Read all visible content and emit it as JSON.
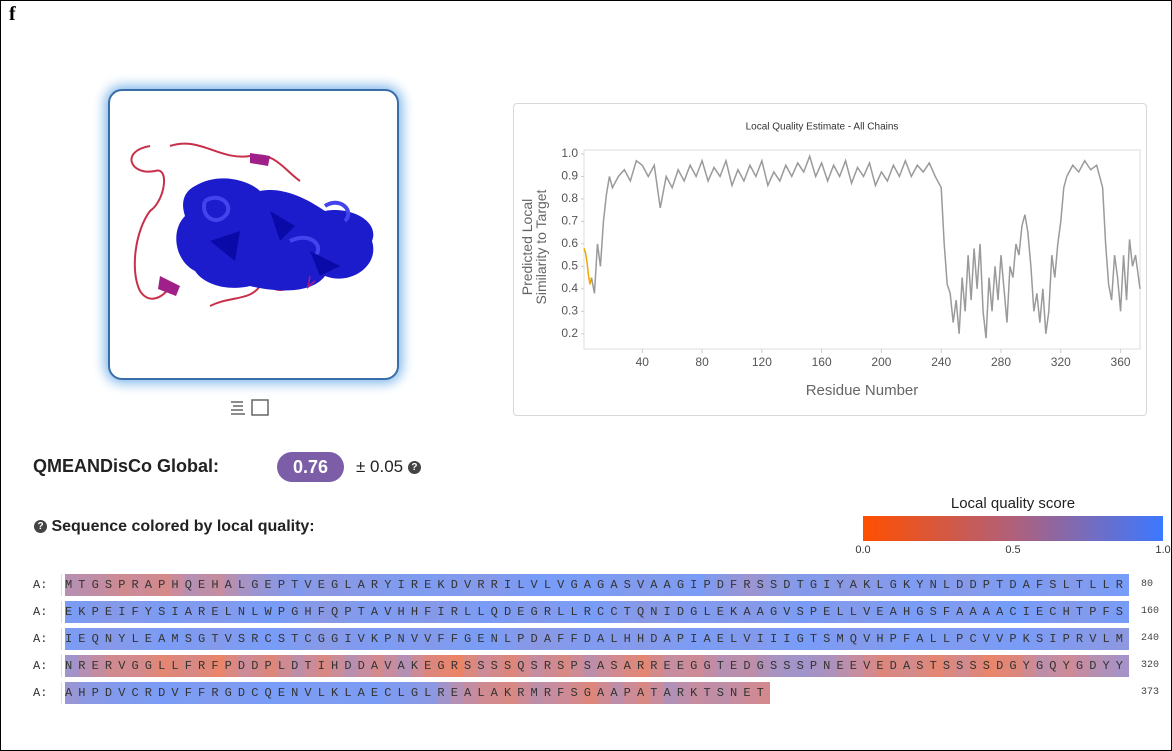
{
  "panel_label": "f",
  "chart_data": {
    "type": "line",
    "title": "Local Quality Estimate - All Chains",
    "xlabel": "Residue Number",
    "ylabel": "Predicted Local Similarity to Target",
    "xlim": [
      1,
      373
    ],
    "ylim": [
      0.15,
      1.0
    ],
    "xticks": [
      40,
      80,
      120,
      160,
      200,
      240,
      280,
      320,
      360
    ],
    "yticks": [
      0.2,
      0.3,
      0.4,
      0.5,
      0.6,
      0.7,
      0.8,
      0.9,
      {
        "value": 1,
        "label": "1.0"
      }
    ],
    "grid": false,
    "series": [
      {
        "color": "#f0a800",
        "x": [
          1,
          2,
          3,
          4,
          5,
          6
        ],
        "values": [
          0.58,
          0.56,
          0.52,
          0.46,
          0.42,
          0.45
        ]
      },
      {
        "color": "#9a9a9a",
        "x": [
          6,
          8,
          10,
          12,
          14,
          16,
          18,
          20,
          24,
          28,
          32,
          36,
          40,
          44,
          48,
          52,
          56,
          60,
          64,
          68,
          72,
          76,
          80,
          84,
          88,
          92,
          96,
          100,
          104,
          108,
          112,
          116,
          120,
          124,
          128,
          132,
          136,
          140,
          144,
          148,
          152,
          156,
          160,
          164,
          168,
          172,
          176,
          180,
          184,
          188,
          192,
          196,
          200,
          204,
          208,
          212,
          216,
          220,
          224,
          228,
          232,
          236,
          240,
          242,
          244,
          246,
          248,
          250,
          252,
          254,
          256,
          258,
          260,
          262,
          264,
          266,
          268,
          270,
          272,
          274,
          276,
          278,
          280,
          282,
          284,
          286,
          288,
          290,
          292,
          294,
          296,
          298,
          300,
          302,
          304,
          306,
          308,
          310,
          312,
          314,
          316,
          318,
          320,
          322,
          324,
          328,
          332,
          336,
          340,
          344,
          348,
          350,
          352,
          354,
          356,
          358,
          360,
          362,
          364,
          366,
          368,
          370,
          373
        ],
        "values": [
          0.45,
          0.38,
          0.6,
          0.5,
          0.7,
          0.82,
          0.9,
          0.85,
          0.9,
          0.93,
          0.88,
          0.97,
          0.95,
          0.9,
          0.95,
          0.76,
          0.9,
          0.85,
          0.93,
          0.88,
          0.95,
          0.9,
          0.97,
          0.88,
          0.94,
          0.9,
          0.97,
          0.86,
          0.93,
          0.88,
          0.95,
          0.9,
          0.97,
          0.86,
          0.92,
          0.88,
          0.95,
          0.9,
          0.96,
          0.92,
          0.99,
          0.9,
          0.96,
          0.88,
          0.95,
          0.9,
          0.97,
          0.87,
          0.94,
          0.9,
          0.96,
          0.86,
          0.92,
          0.88,
          0.95,
          0.9,
          0.97,
          0.9,
          0.95,
          0.92,
          0.96,
          0.9,
          0.85,
          0.6,
          0.42,
          0.38,
          0.25,
          0.35,
          0.2,
          0.45,
          0.3,
          0.55,
          0.35,
          0.58,
          0.4,
          0.6,
          0.3,
          0.18,
          0.45,
          0.3,
          0.5,
          0.35,
          0.55,
          0.4,
          0.25,
          0.5,
          0.45,
          0.6,
          0.55,
          0.68,
          0.73,
          0.65,
          0.5,
          0.3,
          0.38,
          0.25,
          0.4,
          0.2,
          0.3,
          0.55,
          0.45,
          0.6,
          0.7,
          0.85,
          0.9,
          0.95,
          0.92,
          0.97,
          0.93,
          0.95,
          0.85,
          0.6,
          0.42,
          0.35,
          0.55,
          0.45,
          0.3,
          0.55,
          0.35,
          0.62,
          0.5,
          0.55,
          0.4
        ]
      }
    ]
  },
  "qmean": {
    "label": "QMEANDisCo Global:",
    "score": 0.76,
    "error": "± 0.05"
  },
  "quality_legend": {
    "title": "Local quality score",
    "colors": [
      "#ff4f00",
      "#b0607a",
      "#3c78ff"
    ],
    "ticks": [
      {
        "value": 0,
        "label": "0.0"
      },
      0.5,
      {
        "value": 1,
        "label": "1.0"
      }
    ]
  },
  "sequence": {
    "heading": "Sequence colored by local quality:",
    "chain": "A:",
    "rows": [
      {
        "residues": "MTGSPRAPHQEHALGEPTVEGLARYIREKDVRRILVLVGAGASVAAGIPDFRSSDTGIYAKLGKYNLDDPTDAFSLTLLR",
        "end": 80
      },
      {
        "residues": "EKPEIFYSIARELNLWPGHFQPTAVHHFIRLLQDEGRLLRCCTQNIDGLEKAAGVSPELLVEAHGSFAAAACIECHTPFS",
        "end": 160
      },
      {
        "residues": "IEQNYLEAMSGTVSRCSTCGGIVKPNVVFFGENLPDAFFDALHHDAPIAELVIIIGTSMQVHPFALLPCVVPKSIPRVLM",
        "end": 240
      },
      {
        "residues": "NRERVGGLLFRFPDDPLDTIHDDAVAKEGRSSSSQSRSPSASARREEGGTEDGSSSPNEEVEDASTSSSSDGYGQYGDYY",
        "end": 320
      },
      {
        "residues": "AHPDVCRDVFFRGDCQENVLKLAECLGLREALAKRMRFSGAAPATARKTSNET",
        "end": 373
      }
    ]
  }
}
